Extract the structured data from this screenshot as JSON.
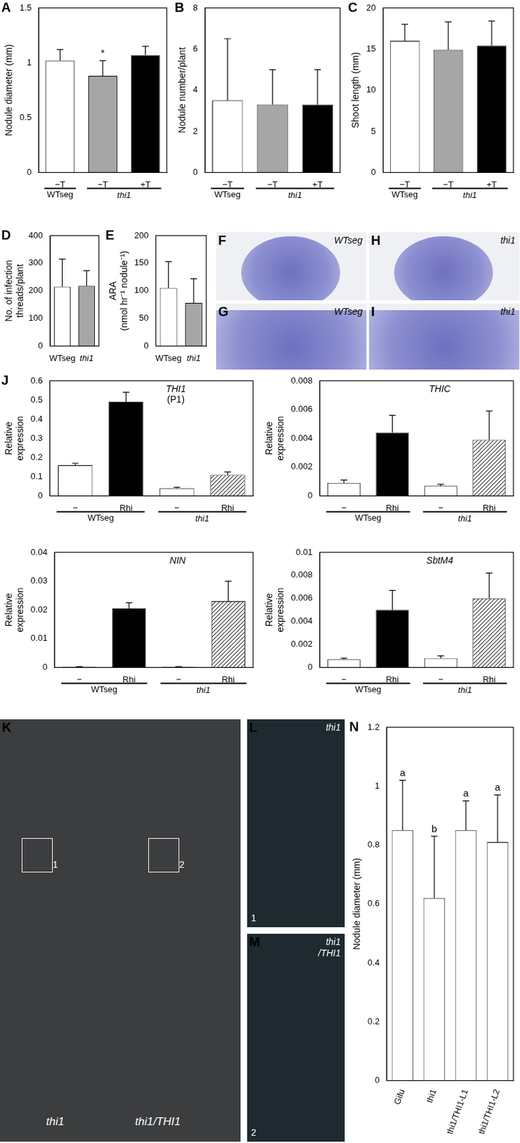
{
  "chart_data": [
    {
      "panel": "A",
      "type": "bar",
      "y_label": "Nodule diameter (mm)",
      "categories": [
        "−T",
        "−T",
        "+T"
      ],
      "values": [
        1.02,
        0.88,
        1.07
      ],
      "errors": [
        0.1,
        0.14,
        0.08
      ],
      "colors": [
        "#ffffff",
        "#a6a6a6",
        "#000000"
      ],
      "groups": [
        {
          "label": "WTseg",
          "span": [
            0,
            0
          ]
        },
        {
          "label": "thi1",
          "span": [
            1,
            2
          ]
        }
      ],
      "annotations": [
        null,
        "*",
        null
      ],
      "ylim": [
        0,
        1.5
      ],
      "yticks": [
        0,
        0.5,
        1,
        1.5
      ],
      "grid": false
    },
    {
      "panel": "B",
      "type": "bar",
      "y_label": "Nodule number/plant",
      "categories": [
        "−T",
        "−T",
        "+T"
      ],
      "values": [
        3.5,
        3.3,
        3.3
      ],
      "errors": [
        3.0,
        1.7,
        1.7
      ],
      "colors": [
        "#ffffff",
        "#a6a6a6",
        "#000000"
      ],
      "groups": [
        {
          "label": "WTseg",
          "span": [
            0,
            0
          ]
        },
        {
          "label": "thi1",
          "span": [
            1,
            2
          ]
        }
      ],
      "ylim": [
        0,
        8
      ],
      "yticks": [
        0,
        2,
        4,
        6,
        8
      ],
      "grid": false
    },
    {
      "panel": "C",
      "type": "bar",
      "y_label": "Shoot length (mm)",
      "categories": [
        "−T",
        "−T",
        "+T"
      ],
      "values": [
        16,
        14.9,
        15.4
      ],
      "errors": [
        2,
        3.4,
        3.0
      ],
      "colors": [
        "#ffffff",
        "#a6a6a6",
        "#000000"
      ],
      "groups": [
        {
          "label": "WTseg",
          "span": [
            0,
            0
          ]
        },
        {
          "label": "thi1",
          "span": [
            1,
            2
          ]
        }
      ],
      "ylim": [
        0,
        20
      ],
      "yticks": [
        0,
        5,
        10,
        15,
        20
      ],
      "grid": false
    },
    {
      "panel": "D",
      "type": "bar",
      "y_label": [
        "No. of infection",
        "threads/plant"
      ],
      "categories": [
        "WTseg",
        "thi1"
      ],
      "values": [
        215,
        218
      ],
      "errors": [
        100,
        55
      ],
      "colors": [
        "#ffffff",
        "#a6a6a6"
      ],
      "ylim": [
        0,
        400
      ],
      "yticks": [
        0,
        100,
        200,
        300,
        400
      ],
      "grid": false
    },
    {
      "panel": "E",
      "type": "bar",
      "y_label": [
        "ARA",
        "(nmol hr⁻¹ nodule⁻¹)"
      ],
      "categories": [
        "WTseg",
        "thi1"
      ],
      "values": [
        105,
        78
      ],
      "errors": [
        48,
        44
      ],
      "colors": [
        "#ffffff",
        "#a6a6a6"
      ],
      "ylim": [
        0,
        200
      ],
      "yticks": [
        0,
        50,
        100,
        150,
        200
      ],
      "grid": false
    },
    {
      "panel": "J",
      "type": "bar",
      "title": [
        "THI1",
        "(P1)"
      ],
      "y_label": [
        "Relative",
        "expression"
      ],
      "categories": [
        "−",
        "Rhi",
        "−",
        "Rhi"
      ],
      "values": [
        0.16,
        0.49,
        0.04,
        0.11
      ],
      "errors": [
        0.01,
        0.05,
        0.005,
        0.015
      ],
      "colors": [
        "#ffffff",
        "#000000",
        "#ffffff",
        "hatched"
      ],
      "groups": [
        {
          "label": "WTseg",
          "span": [
            0,
            1
          ]
        },
        {
          "label": "thi1",
          "span": [
            2,
            3
          ]
        }
      ],
      "ylim": [
        0,
        0.6
      ],
      "yticks": [
        0,
        0.1,
        0.2,
        0.3,
        0.4,
        0.5,
        0.6
      ],
      "grid": false
    },
    {
      "type": "bar",
      "title": [
        "THIC"
      ],
      "y_label": [
        "Relative",
        "expression"
      ],
      "categories": [
        "−",
        "Rhi",
        "−",
        "Rhi"
      ],
      "values": [
        0.0009,
        0.0044,
        0.0007,
        0.0039
      ],
      "errors": [
        0.0002,
        0.0012,
        0.0001,
        0.002
      ],
      "colors": [
        "#ffffff",
        "#000000",
        "#ffffff",
        "hatched"
      ],
      "groups": [
        {
          "label": "WTseg",
          "span": [
            0,
            1
          ]
        },
        {
          "label": "thi1",
          "span": [
            2,
            3
          ]
        }
      ],
      "ylim": [
        0,
        0.008
      ],
      "yticks": [
        0,
        0.002,
        0.004,
        0.006,
        0.008
      ],
      "grid": false
    },
    {
      "type": "bar",
      "title": [
        "NIN"
      ],
      "y_label": [
        "Relative",
        "expression"
      ],
      "categories": [
        "−",
        "Rhi",
        "−",
        "Rhi"
      ],
      "values": [
        0.0002,
        0.0205,
        0.0002,
        0.023
      ],
      "errors": [
        0.0001,
        0.002,
        0.0001,
        0.007
      ],
      "colors": [
        "#ffffff",
        "#000000",
        "#ffffff",
        "hatched"
      ],
      "groups": [
        {
          "label": "WTseg",
          "span": [
            0,
            1
          ]
        },
        {
          "label": "thi1",
          "span": [
            2,
            3
          ]
        }
      ],
      "ylim": [
        0,
        0.04
      ],
      "yticks": [
        0,
        0.01,
        0.02,
        0.03,
        0.04
      ],
      "grid": false
    },
    {
      "type": "bar",
      "title": [
        "SbtM4"
      ],
      "y_label": [
        "Relative",
        "expression"
      ],
      "categories": [
        "−",
        "Rhi",
        "−",
        "Rhi"
      ],
      "values": [
        0.0007,
        0.005,
        0.0008,
        0.006
      ],
      "errors": [
        0.0001,
        0.0017,
        0.0002,
        0.0022
      ],
      "colors": [
        "#ffffff",
        "#000000",
        "#ffffff",
        "hatched"
      ],
      "groups": [
        {
          "label": "WTseg",
          "span": [
            0,
            1
          ]
        },
        {
          "label": "thi1",
          "span": [
            2,
            3
          ]
        }
      ],
      "ylim": [
        0,
        0.01
      ],
      "yticks": [
        0,
        0.002,
        0.004,
        0.006,
        0.008,
        0.01
      ],
      "grid": false
    },
    {
      "panel": "N",
      "type": "bar",
      "y_label": "Nodule diameter (mm)",
      "categories": [
        "Gifu",
        "thi1",
        "thi1/THI1-L1",
        "thi1/THI1-L2"
      ],
      "values": [
        0.85,
        0.62,
        0.85,
        0.81
      ],
      "errors": [
        0.17,
        0.21,
        0.1,
        0.16
      ],
      "colors": [
        "#ffffff",
        "#ffffff",
        "#ffffff",
        "#ffffff"
      ],
      "annotations": [
        "a",
        "b",
        "a",
        "a"
      ],
      "ylim": [
        0,
        1.2
      ],
      "yticks": [
        0,
        0.2,
        0.4,
        0.6,
        0.8,
        1,
        1.2
      ],
      "grid": false
    }
  ],
  "images": [
    {
      "panel": "F",
      "labels": [
        "WTseg"
      ]
    },
    {
      "panel": "G",
      "labels": [
        "WTseg"
      ]
    },
    {
      "panel": "H",
      "labels": [
        "thi1"
      ]
    },
    {
      "panel": "I",
      "labels": [
        "thi1"
      ]
    },
    {
      "panel": "K",
      "labels": [
        "thi1",
        "thi1/THI1"
      ],
      "insets": [
        "1",
        "2"
      ]
    },
    {
      "panel": "L",
      "labels": [
        "thi1"
      ],
      "insets": [
        "1"
      ]
    },
    {
      "panel": "M",
      "labels": [
        "thi1",
        "/THI1"
      ],
      "insets": [
        "2"
      ]
    }
  ]
}
